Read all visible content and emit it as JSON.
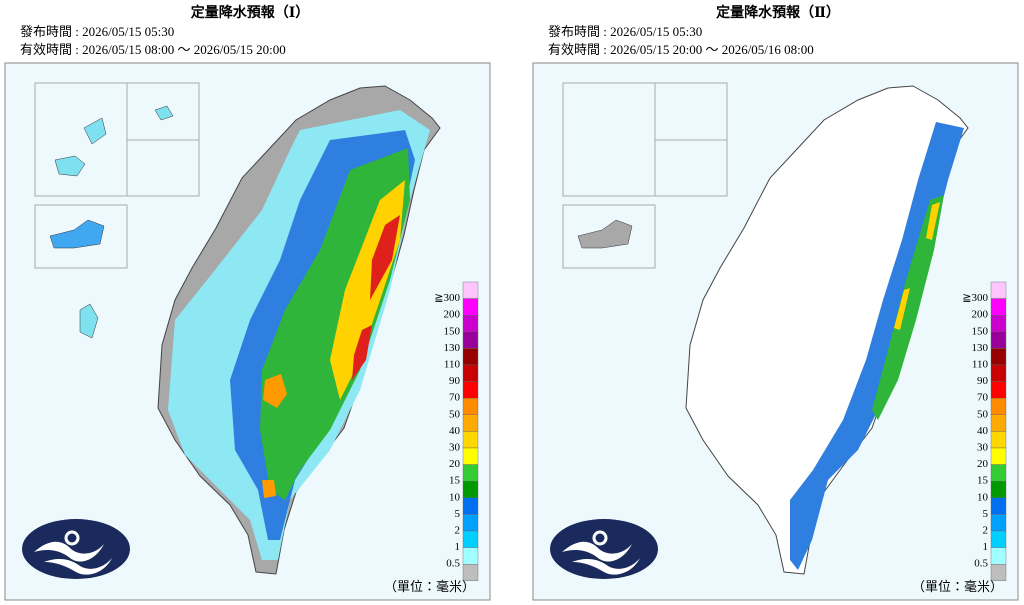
{
  "panels": [
    {
      "title": "定量降水預報（Ⅰ）",
      "issued": "發布時間 : 2026/05/15 05:30",
      "valid": "有效時間 : 2026/05/15 08:00 ～ 2026/05/15 20:00"
    },
    {
      "title": "定量降水預報（Ⅱ）",
      "issued": "發布時間 : 2026/05/15 05:30",
      "valid": "有效時間 : 2026/05/15 20:00 ～ 2026/05/16 08:00"
    }
  ],
  "legend": {
    "labels": [
      "≧300",
      "200",
      "150",
      "130",
      "110",
      "90",
      "70",
      "50",
      "40",
      "30",
      "20",
      "15",
      "10",
      "5",
      "2",
      "1",
      "0.5"
    ],
    "colors": [
      "#ffc6fe",
      "#ff00ff",
      "#cc00cc",
      "#99009a",
      "#960000",
      "#c80000",
      "#ff0000",
      "#ff8c00",
      "#ffaa00",
      "#ffd700",
      "#ffff00",
      "#33cc33",
      "#009900",
      "#0070f0",
      "#00a0ff",
      "#00cfff",
      "#a0ffff"
    ],
    "unit": "（單位：毫米）"
  }
}
